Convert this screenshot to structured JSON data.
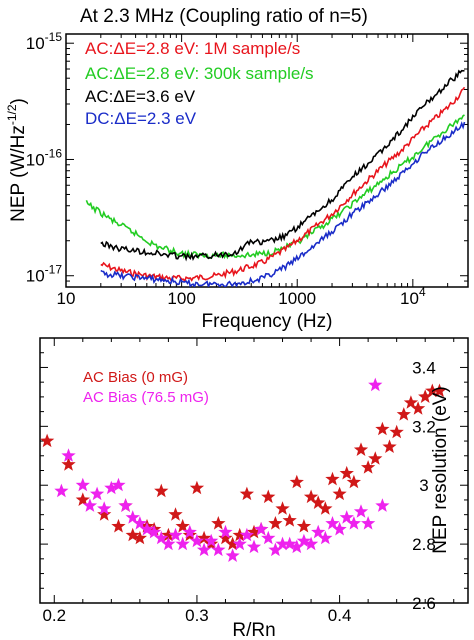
{
  "chart_data": [
    {
      "type": "line",
      "title": "At 2.3 MHz (Coupling ratio of n=5)",
      "xlabel": "Frequency (Hz)",
      "ylabel": "NEP (W/Hz-1/2)",
      "xscale": "log",
      "yscale": "log",
      "xlim": [
        10,
        30000
      ],
      "ylim": [
        8e-18,
        1.2e-15
      ],
      "x_ticks": [
        {
          "value": 10,
          "label": "10"
        },
        {
          "value": 100,
          "label": "100"
        },
        {
          "value": 1000,
          "label": "1000"
        },
        {
          "value": 10000,
          "label": "10",
          "exp": "4"
        }
      ],
      "y_ticks": [
        {
          "value": 1e-17,
          "label": "10",
          "exp": "-17"
        },
        {
          "value": 1e-16,
          "label": "10",
          "exp": "-16"
        },
        {
          "value": 1e-15,
          "label": "10",
          "exp": "-15"
        }
      ],
      "legend_placement": "top-left",
      "series": [
        {
          "legend": "AC:ΔE=2.8 eV: 1M sample/s",
          "color": "#e8141c",
          "x": [
            20,
            30,
            50,
            80,
            120,
            200,
            300,
            500,
            800,
            1200,
            2000,
            3000,
            5000,
            8000,
            12000,
            20000,
            28000
          ],
          "y": [
            1.25e-17,
            1.1e-17,
            1e-17,
            9.5e-18,
            9.5e-18,
            1e-17,
            1.1e-17,
            1.3e-17,
            1.7e-17,
            2.3e-17,
            3.4e-17,
            5e-17,
            8e-17,
            1.2e-16,
            1.8e-16,
            2.8e-16,
            4e-16
          ]
        },
        {
          "legend": "AC:ΔE=2.8 eV: 300k sample/s",
          "color": "#22cc22",
          "x": [
            15,
            25,
            40,
            60,
            100,
            150,
            250,
            400,
            600,
            1000,
            1500,
            2500,
            4000,
            7000,
            10000,
            15000,
            22000,
            28000
          ],
          "y": [
            4.2e-17,
            3e-17,
            2.3e-17,
            1.8e-17,
            1.55e-17,
            1.5e-17,
            1.5e-17,
            1.5e-17,
            1.6e-17,
            1.9e-17,
            2.5e-17,
            3.6e-17,
            5.2e-17,
            8e-17,
            1.05e-16,
            1.5e-16,
            2e-16,
            2.4e-16
          ]
        },
        {
          "legend": "AC:ΔE=3.6 eV",
          "color": "#000000",
          "x": [
            20,
            30,
            50,
            80,
            120,
            200,
            300,
            400,
            500,
            800,
            1200,
            2000,
            3000,
            5000,
            8000,
            12000,
            20000,
            28000
          ],
          "y": [
            1.9e-17,
            1.7e-17,
            1.6e-17,
            1.5e-17,
            1.45e-17,
            1.5e-17,
            1.6e-17,
            2e-17,
            1.9e-17,
            2.2e-17,
            3e-17,
            4.5e-17,
            7e-17,
            1.1e-16,
            1.8e-16,
            2.8e-16,
            4.5e-16,
            6e-16
          ]
        },
        {
          "legend": "DC:ΔE=2.3 eV",
          "color": "#1a2cc8",
          "x": [
            20,
            30,
            50,
            80,
            120,
            200,
            300,
            500,
            800,
            1200,
            2000,
            3000,
            5000,
            8000,
            12000,
            20000,
            28000
          ],
          "y": [
            1.05e-17,
            1e-17,
            9.5e-18,
            9e-18,
            8.5e-18,
            8.5e-18,
            8.5e-18,
            9.5e-18,
            1.2e-17,
            1.6e-17,
            2.4e-17,
            3.4e-17,
            5e-17,
            7.5e-17,
            1.1e-16,
            1.6e-16,
            2e-16
          ]
        }
      ]
    },
    {
      "type": "scatter",
      "xlabel": "R/Rn",
      "ylabel": "NEP resolution (eV)",
      "xlim": [
        0.19,
        0.49
      ],
      "ylim": [
        2.6,
        3.5
      ],
      "x_ticks": [
        {
          "value": 0.2,
          "label": "0.2"
        },
        {
          "value": 0.3,
          "label": "0.3"
        },
        {
          "value": 0.4,
          "label": "0.4"
        }
      ],
      "y_ticks": [
        {
          "value": 2.6,
          "label": "2.6"
        },
        {
          "value": 2.8,
          "label": "2.8"
        },
        {
          "value": 3.0,
          "label": "3"
        },
        {
          "value": 3.2,
          "label": "3.2"
        },
        {
          "value": 3.4,
          "label": "3.4"
        }
      ],
      "legend_placement": "top-left",
      "series": [
        {
          "legend": "AC Bias (0 mG)",
          "color": "#d01818",
          "marker": "star",
          "x": [
            0.195,
            0.21,
            0.22,
            0.235,
            0.245,
            0.25,
            0.255,
            0.26,
            0.265,
            0.27,
            0.275,
            0.28,
            0.285,
            0.29,
            0.295,
            0.3,
            0.305,
            0.31,
            0.315,
            0.32,
            0.325,
            0.33,
            0.335,
            0.34,
            0.345,
            0.35,
            0.355,
            0.36,
            0.365,
            0.37,
            0.375,
            0.38,
            0.385,
            0.39,
            0.395,
            0.4,
            0.405,
            0.41,
            0.415,
            0.42,
            0.425,
            0.43,
            0.435,
            0.44,
            0.445,
            0.45,
            0.455,
            0.46,
            0.465,
            0.47
          ],
          "y": [
            3.15,
            3.07,
            2.95,
            2.9,
            2.86,
            2.93,
            2.83,
            2.82,
            2.86,
            2.85,
            2.98,
            2.83,
            2.9,
            2.86,
            2.83,
            2.99,
            2.82,
            2.8,
            2.87,
            2.82,
            2.8,
            2.83,
            2.97,
            2.84,
            2.85,
            2.96,
            2.87,
            2.92,
            2.88,
            3.01,
            2.86,
            2.96,
            2.94,
            2.92,
            3.02,
            2.97,
            3.04,
            3.01,
            3.12,
            3.06,
            3.09,
            3.19,
            3.13,
            3.18,
            3.24,
            3.28,
            3.26,
            3.3,
            3.32,
            3.32
          ]
        },
        {
          "legend": "AC Bias (76.5 mG)",
          "color": "#ee22ee",
          "marker": "star",
          "x": [
            0.205,
            0.21,
            0.22,
            0.225,
            0.23,
            0.235,
            0.24,
            0.245,
            0.25,
            0.255,
            0.26,
            0.265,
            0.27,
            0.275,
            0.28,
            0.285,
            0.29,
            0.295,
            0.3,
            0.305,
            0.31,
            0.315,
            0.32,
            0.325,
            0.33,
            0.335,
            0.34,
            0.345,
            0.35,
            0.355,
            0.36,
            0.365,
            0.37,
            0.375,
            0.38,
            0.385,
            0.39,
            0.395,
            0.4,
            0.405,
            0.41,
            0.415,
            0.42,
            0.425,
            0.43
          ],
          "y": [
            2.98,
            3.1,
            3.0,
            2.93,
            2.97,
            2.92,
            2.99,
            3.0,
            2.93,
            2.89,
            2.87,
            2.85,
            2.84,
            2.82,
            2.8,
            2.83,
            2.8,
            2.84,
            2.81,
            2.78,
            2.81,
            2.78,
            2.84,
            2.76,
            2.8,
            2.83,
            2.79,
            2.85,
            2.82,
            2.78,
            2.8,
            2.8,
            2.79,
            2.81,
            2.8,
            2.84,
            2.82,
            2.87,
            2.85,
            2.89,
            2.87,
            2.91,
            2.87,
            3.34,
            2.93
          ]
        }
      ]
    }
  ]
}
